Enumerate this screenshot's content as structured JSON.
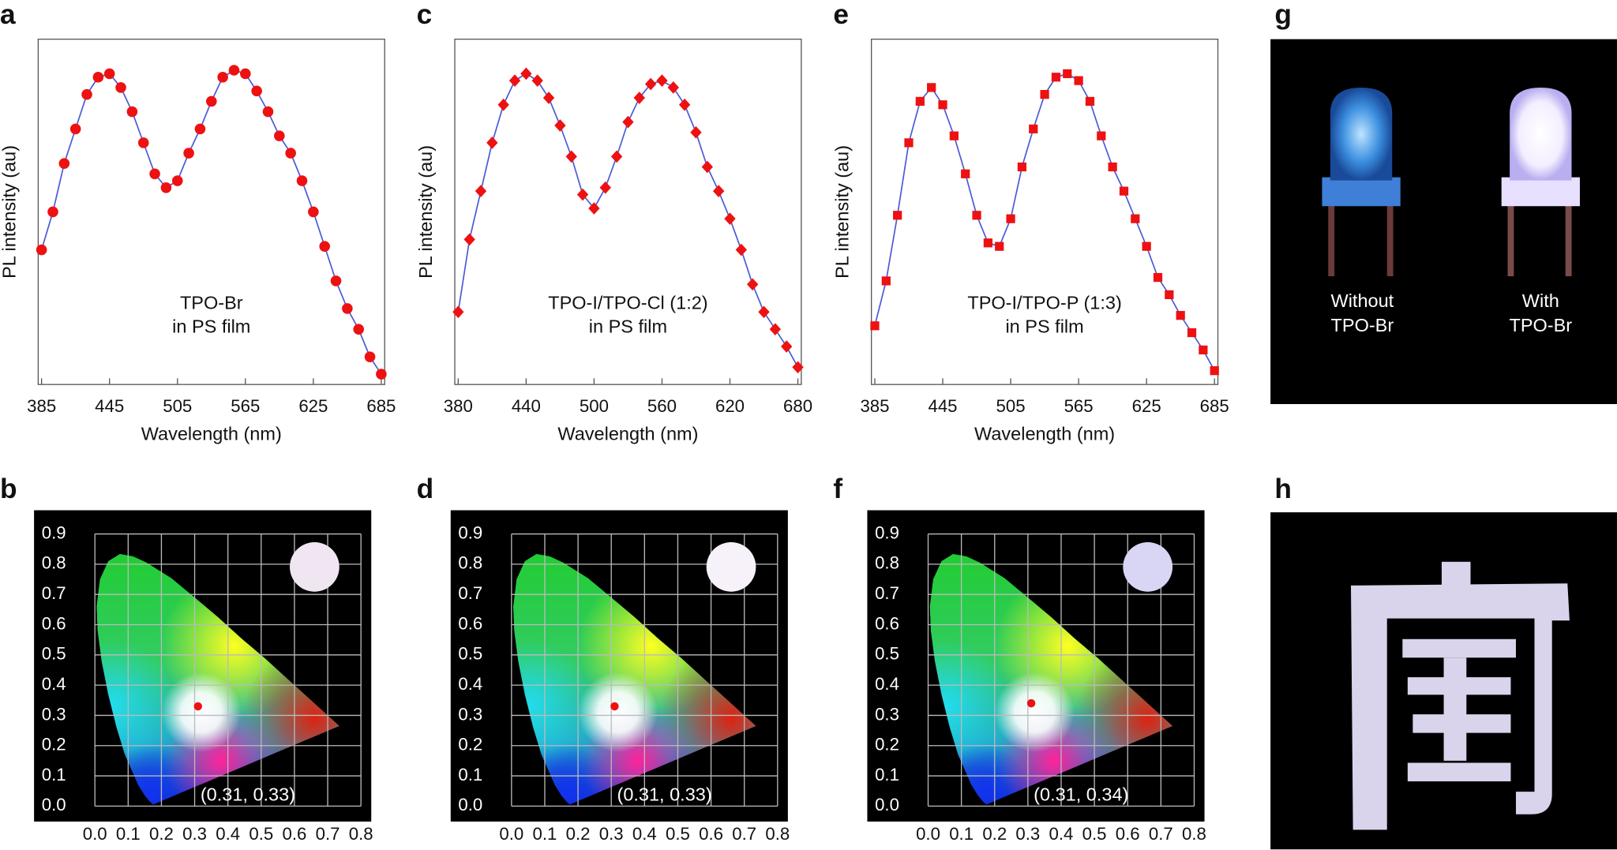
{
  "chart_data": [
    {
      "type": "line",
      "panel": "a",
      "xlabel": "Wavelength (nm)",
      "ylabel": "PL intensity (au)",
      "annotation": [
        "TPO-Br",
        "in PS film"
      ],
      "x": [
        385,
        395,
        405,
        415,
        425,
        435,
        445,
        455,
        465,
        475,
        485,
        495,
        505,
        515,
        525,
        535,
        545,
        555,
        565,
        575,
        585,
        595,
        605,
        615,
        625,
        635,
        645,
        655,
        665,
        675,
        685
      ],
      "values": [
        0.39,
        0.5,
        0.64,
        0.74,
        0.84,
        0.89,
        0.9,
        0.86,
        0.79,
        0.7,
        0.61,
        0.57,
        0.59,
        0.67,
        0.74,
        0.82,
        0.89,
        0.91,
        0.9,
        0.85,
        0.79,
        0.72,
        0.67,
        0.59,
        0.5,
        0.4,
        0.3,
        0.22,
        0.16,
        0.08,
        0.03
      ],
      "line_color": "#4a5bd6",
      "marker_color": "#ee1111",
      "marker": "circle",
      "xlim": [
        382,
        688
      ],
      "ylim": [
        0,
        1
      ],
      "xticks": [
        385,
        445,
        505,
        565,
        625,
        685
      ]
    },
    {
      "type": "scatter",
      "panel": "b",
      "x": [
        0.31
      ],
      "y": [
        0.33
      ],
      "annotation": "(0.31, 0.33)",
      "color": "#ee1111",
      "xlim": [
        0,
        0.8
      ],
      "ylim": [
        0,
        0.9
      ],
      "grid": true,
      "xticks": [
        {
          "value": 0,
          "label": "0.0"
        },
        0.1,
        0.2,
        0.3,
        0.4,
        0.5,
        0.6,
        0.7,
        0.8
      ],
      "yticks": [
        {
          "value": 0,
          "label": "0.0"
        },
        0.1,
        0.2,
        0.3,
        0.4,
        0.5,
        0.6,
        0.7,
        0.8,
        0.9
      ]
    },
    {
      "type": "line",
      "panel": "c",
      "xlabel": "Wavelength (nm)",
      "ylabel": "PL intensity (au)",
      "annotation": [
        "TPO-I/TPO-Cl (1:2)",
        "in PS film"
      ],
      "x": [
        380,
        390,
        400,
        410,
        420,
        430,
        440,
        450,
        460,
        470,
        480,
        490,
        500,
        510,
        520,
        530,
        540,
        550,
        560,
        570,
        580,
        590,
        600,
        610,
        620,
        630,
        640,
        650,
        660,
        670,
        680
      ],
      "values": [
        0.21,
        0.42,
        0.56,
        0.7,
        0.81,
        0.88,
        0.9,
        0.88,
        0.83,
        0.75,
        0.66,
        0.55,
        0.51,
        0.57,
        0.66,
        0.76,
        0.83,
        0.87,
        0.88,
        0.86,
        0.81,
        0.73,
        0.63,
        0.56,
        0.48,
        0.39,
        0.29,
        0.21,
        0.16,
        0.11,
        0.05
      ],
      "line_color": "#4a5bd6",
      "marker_color": "#ee1111",
      "marker": "diamond",
      "xlim": [
        377,
        683
      ],
      "ylim": [
        0,
        1
      ],
      "xticks": [
        380,
        440,
        500,
        560,
        620,
        680
      ]
    },
    {
      "type": "scatter",
      "panel": "d",
      "x": [
        0.31
      ],
      "y": [
        0.33
      ],
      "annotation": "(0.31, 0.33)",
      "color": "#ee1111",
      "xlim": [
        0,
        0.8
      ],
      "ylim": [
        0,
        0.9
      ],
      "grid": true,
      "xticks": [
        {
          "value": 0,
          "label": "0.0"
        },
        0.1,
        0.2,
        0.3,
        0.4,
        0.5,
        0.6,
        0.7,
        0.8
      ],
      "yticks": [
        {
          "value": 0,
          "label": "0.0"
        },
        0.1,
        0.2,
        0.3,
        0.4,
        0.5,
        0.6,
        0.7,
        0.8,
        0.9
      ]
    },
    {
      "type": "line",
      "panel": "e",
      "xlabel": "Wavelength (nm)",
      "ylabel": "PL intensity (au)",
      "annotation": [
        "TPO-I/TPO-P (1:3)",
        "in PS film"
      ],
      "x": [
        385,
        395,
        405,
        415,
        425,
        435,
        445,
        455,
        465,
        475,
        485,
        495,
        505,
        515,
        525,
        535,
        545,
        555,
        565,
        575,
        585,
        595,
        605,
        615,
        625,
        635,
        645,
        655,
        665,
        675,
        685
      ],
      "values": [
        0.17,
        0.3,
        0.49,
        0.7,
        0.82,
        0.86,
        0.81,
        0.72,
        0.61,
        0.49,
        0.41,
        0.4,
        0.48,
        0.63,
        0.74,
        0.84,
        0.89,
        0.9,
        0.88,
        0.82,
        0.72,
        0.63,
        0.56,
        0.48,
        0.4,
        0.31,
        0.26,
        0.2,
        0.15,
        0.1,
        0.04
      ],
      "line_color": "#4a5bd6",
      "marker_color": "#ee1111",
      "marker": "square",
      "xlim": [
        382,
        688
      ],
      "ylim": [
        0,
        1
      ],
      "xticks": [
        385,
        445,
        505,
        565,
        625,
        685
      ]
    },
    {
      "type": "scatter",
      "panel": "f",
      "x": [
        0.31
      ],
      "y": [
        0.34
      ],
      "annotation": "(0.31, 0.34)",
      "color": "#ee1111",
      "xlim": [
        0,
        0.8
      ],
      "ylim": [
        0,
        0.9
      ],
      "grid": true,
      "xticks": [
        {
          "value": 0,
          "label": "0.0"
        },
        0.1,
        0.2,
        0.3,
        0.4,
        0.5,
        0.6,
        0.7,
        0.8
      ],
      "yticks": [
        {
          "value": 0,
          "label": "0.0"
        },
        0.1,
        0.2,
        0.3,
        0.4,
        0.5,
        0.6,
        0.7,
        0.8,
        0.9
      ]
    }
  ],
  "photos": [
    {
      "panel": "g",
      "captions": [
        [
          "Without",
          "TPO-Br"
        ],
        [
          "With",
          "TPO-Br"
        ]
      ]
    },
    {
      "panel": "h"
    }
  ]
}
